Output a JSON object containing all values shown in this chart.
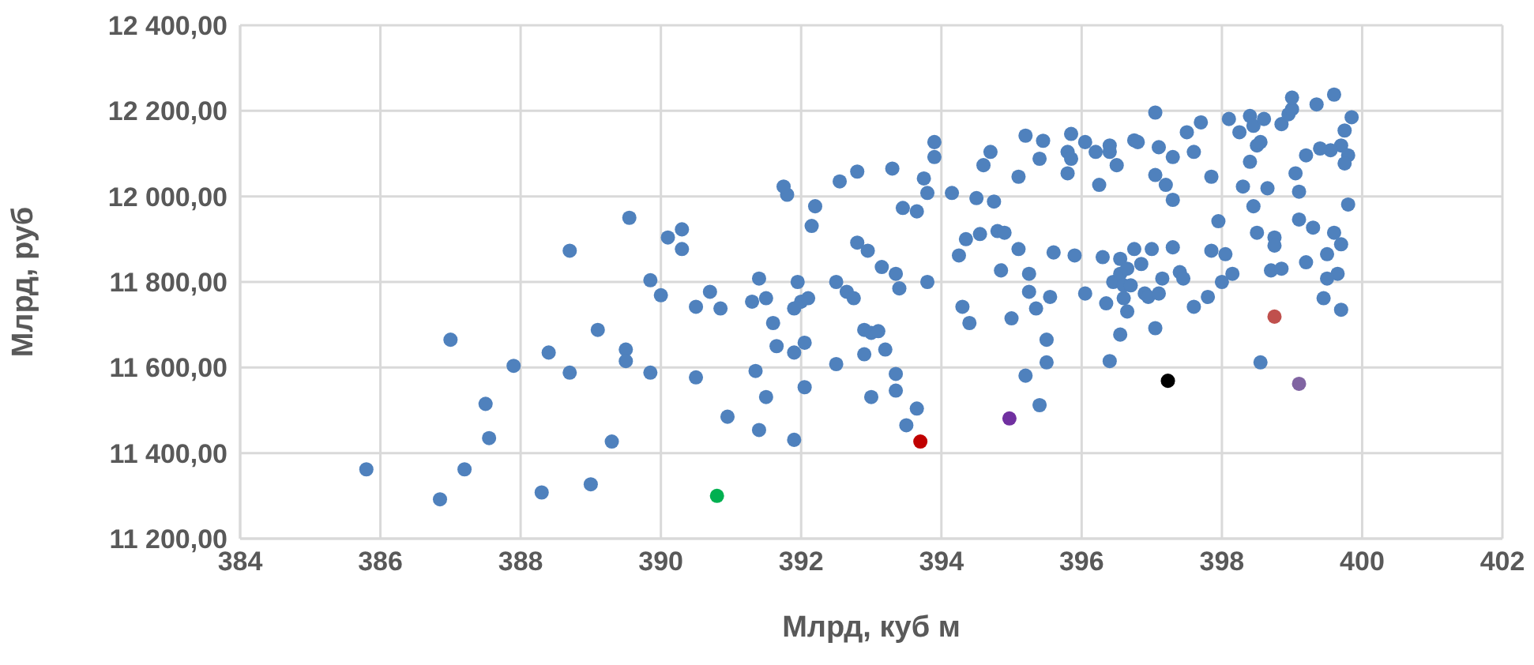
{
  "chart_data": {
    "type": "scatter",
    "xlabel": "Млрд, куб м",
    "ylabel": "Млрд, руб",
    "xlim": [
      384,
      402
    ],
    "xticks": [
      384,
      386,
      388,
      390,
      392,
      394,
      396,
      398,
      400,
      402
    ],
    "ylim": [
      11200,
      12400
    ],
    "yticks": [
      {
        "value": 11200,
        "label": "11 200,00"
      },
      {
        "value": 11400,
        "label": "11 400,00"
      },
      {
        "value": 11600,
        "label": "11 600,00"
      },
      {
        "value": 11800,
        "label": "11 800,00"
      },
      {
        "value": 12000,
        "label": "12 000,00"
      },
      {
        "value": 12200,
        "label": "12 200,00"
      },
      {
        "value": 12400,
        "label": "12 400,00"
      }
    ],
    "grid": true,
    "legend": false,
    "marker": "circle",
    "series": [
      {
        "color": "#4f81bd",
        "x": [
          385.8,
          386.85,
          387.0,
          387.2,
          387.5,
          387.55,
          387.9,
          388.3,
          388.4,
          388.7,
          388.7,
          389.0,
          389.1,
          389.3,
          389.5,
          389.55,
          389.5,
          389.85,
          389.85,
          390.0,
          390.1,
          390.3,
          390.3,
          390.5,
          390.5,
          390.7,
          390.85,
          390.95,
          391.3,
          391.35,
          391.4,
          391.4,
          391.5,
          391.5,
          391.6,
          391.65,
          391.8,
          391.75,
          391.9,
          391.9,
          391.95,
          391.9,
          392.0,
          392.05,
          392.05,
          392.1,
          392.15,
          392.2,
          392.5,
          392.5,
          392.55,
          392.65,
          392.75,
          392.8,
          392.8,
          392.9,
          392.9,
          392.95,
          393.0,
          393.0,
          393.1,
          393.15,
          393.2,
          393.3,
          393.35,
          393.35,
          393.35,
          393.4,
          393.45,
          393.5,
          393.65,
          393.65,
          393.8,
          393.75,
          393.8,
          393.9,
          393.9,
          394.15,
          394.25,
          394.3,
          394.4,
          394.35,
          394.5,
          394.55,
          394.6,
          394.7,
          394.75,
          394.8,
          394.85,
          394.9,
          395.0,
          395.1,
          395.1,
          395.2,
          395.2,
          395.25,
          395.25,
          395.35,
          395.4,
          395.4,
          395.5,
          395.45,
          395.5,
          395.55,
          395.6,
          395.8,
          395.8,
          395.85,
          395.85,
          395.9,
          396.05,
          396.05,
          396.2,
          396.25,
          396.3,
          396.35,
          396.4,
          396.4,
          396.45,
          396.4,
          396.5,
          396.55,
          396.55,
          396.6,
          396.55,
          396.6,
          396.65,
          396.65,
          396.7,
          396.75,
          396.75,
          396.8,
          396.85,
          396.9,
          396.95,
          397.0,
          397.05,
          397.05,
          397.1,
          397.1,
          397.05,
          397.15,
          397.2,
          397.3,
          397.3,
          397.3,
          397.4,
          397.45,
          397.5,
          397.6,
          397.6,
          397.7,
          397.8,
          397.85,
          397.85,
          397.95,
          398.0,
          398.05,
          398.15,
          398.1,
          398.25,
          398.3,
          398.4,
          398.4,
          398.45,
          398.5,
          398.5,
          398.55,
          398.6,
          398.65,
          398.7,
          398.75,
          398.75,
          398.85,
          398.95,
          399.0,
          399.0,
          399.35,
          399.6,
          399.75,
          399.7,
          399.8,
          399.75,
          399.85,
          399.8,
          399.55,
          399.4,
          399.6,
          399.7,
          399.5,
          399.65,
          399.5,
          399.7,
          399.45,
          399.3,
          399.2,
          399.05,
          399.2,
          399.1,
          399.1,
          398.55,
          398.45,
          398.85
        ],
        "values": [
          11362,
          11292,
          11665,
          11362,
          11515,
          11435,
          11604,
          11308,
          11635,
          11873,
          11588,
          11327,
          11688,
          11427,
          11642,
          11950,
          11615,
          11588,
          11804,
          11769,
          11904,
          11923,
          11877,
          11577,
          11742,
          11777,
          11738,
          11485,
          11754,
          11592,
          11808,
          11454,
          11531,
          11762,
          11704,
          11650,
          12004,
          12023,
          11635,
          11738,
          11800,
          11431,
          11754,
          11554,
          11658,
          11762,
          11931,
          11977,
          11800,
          11608,
          12035,
          11777,
          11762,
          12058,
          11892,
          11688,
          11631,
          11873,
          11531,
          11681,
          11685,
          11835,
          11642,
          12065,
          11819,
          11585,
          11546,
          11785,
          11973,
          11465,
          11504,
          11965,
          11800,
          12042,
          12008,
          12092,
          12127,
          12008,
          11862,
          11742,
          11704,
          11900,
          11996,
          11912,
          12073,
          12104,
          11988,
          11919,
          11827,
          11915,
          11715,
          12046,
          11877,
          12142,
          11581,
          11777,
          11819,
          11738,
          12088,
          11512,
          11665,
          12130,
          11612,
          11765,
          11869,
          12054,
          12104,
          12146,
          12088,
          11862,
          11773,
          12127,
          12104,
          12027,
          11858,
          11750,
          12104,
          12119,
          11800,
          11615,
          12073,
          11854,
          11819,
          11762,
          11677,
          11792,
          11831,
          11731,
          11792,
          12131,
          11877,
          12127,
          11842,
          11773,
          11765,
          11877,
          12050,
          12196,
          12115,
          11773,
          11692,
          11808,
          12027,
          12092,
          11992,
          11881,
          11823,
          11808,
          12150,
          12104,
          11742,
          12173,
          11765,
          11873,
          12046,
          11942,
          11800,
          11865,
          11819,
          12181,
          12150,
          12023,
          12081,
          12188,
          12165,
          11915,
          12119,
          12127,
          12181,
          12019,
          11827,
          11904,
          11885,
          12169,
          12192,
          12204,
          12231,
          12215,
          12238,
          12154,
          12119,
          12096,
          12077,
          12185,
          11981,
          12108,
          12112,
          11915,
          11888,
          11865,
          11819,
          11808,
          11735,
          11762,
          11927,
          11846,
          12054,
          12096,
          12011,
          11946,
          11612,
          11977,
          11831
        ]
      },
      {
        "color": "#00b050",
        "x": [
          390.8
        ],
        "values": [
          11300
        ]
      },
      {
        "color": "#c00000",
        "x": [
          393.7
        ],
        "values": [
          11427
        ]
      },
      {
        "color": "#7030a0",
        "x": [
          394.97
        ],
        "values": [
          11481
        ]
      },
      {
        "color": "#000000",
        "x": [
          397.23
        ],
        "values": [
          11569
        ]
      },
      {
        "color": "#c0504d",
        "x": [
          398.75
        ],
        "values": [
          11719
        ]
      },
      {
        "color": "#8064a2",
        "x": [
          399.1
        ],
        "values": [
          11562
        ]
      }
    ]
  }
}
